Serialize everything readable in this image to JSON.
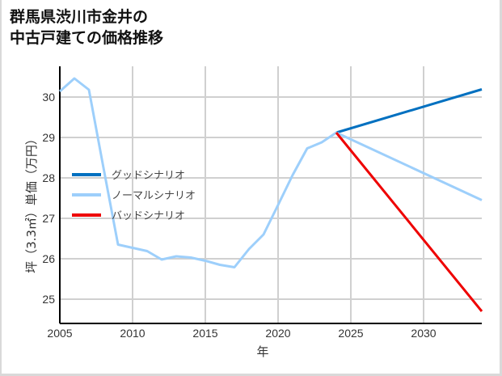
{
  "title_lines": [
    "群馬県渋川市金井の",
    "中古戸建ての価格推移"
  ],
  "chart_data": {
    "type": "line",
    "title": "群馬県渋川市金井の中古戸建ての価格推移",
    "xlabel": "年",
    "ylabel": "坪（3.3㎡）単価（万円）",
    "xlim": [
      2005,
      2034
    ],
    "ylim": [
      24.4,
      30.76
    ],
    "xticks": [
      2005,
      2010,
      2015,
      2020,
      2025,
      2030
    ],
    "yticks": [
      25,
      26,
      27,
      28,
      29,
      30
    ],
    "grid": true,
    "legend_position": "left-middle",
    "series": [
      {
        "name": "グッドシナリオ",
        "color": "#0070c0",
        "x": [
          2024,
          2034
        ],
        "y": [
          29.12,
          30.19
        ]
      },
      {
        "name": "ノーマルシナリオ",
        "color": "#9dcffb",
        "x": [
          2005,
          2006,
          2007,
          2008,
          2009,
          2010,
          2011,
          2012,
          2013,
          2014,
          2015,
          2016,
          2017,
          2018,
          2019,
          2020,
          2021,
          2022,
          2023,
          2024,
          2034
        ],
        "y": [
          30.14,
          30.46,
          30.18,
          28.25,
          26.35,
          26.27,
          26.19,
          25.98,
          26.06,
          26.03,
          25.95,
          25.85,
          25.79,
          26.24,
          26.6,
          27.33,
          28.07,
          28.73,
          28.88,
          29.12,
          27.45
        ]
      },
      {
        "name": "バッドシナリオ",
        "color": "#ee0000",
        "x": [
          2024,
          2034
        ],
        "y": [
          29.12,
          24.7
        ]
      }
    ]
  }
}
